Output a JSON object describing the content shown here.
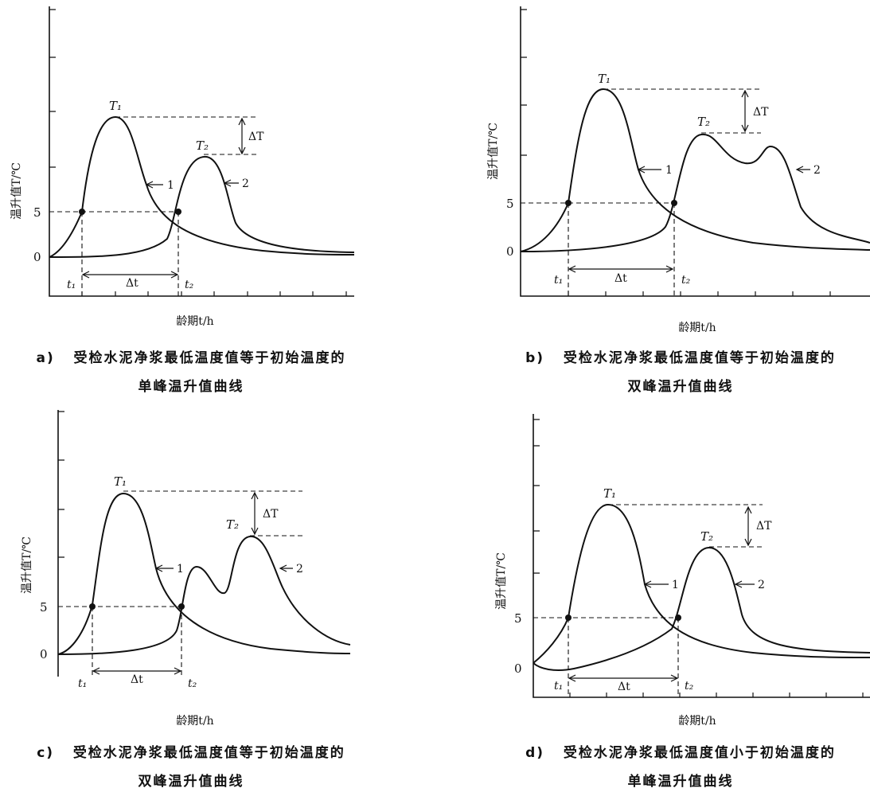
{
  "diagrams": [
    {
      "id": "a",
      "tag": "a)",
      "caption_line1": "受检水泥净浆最低温度值等于初始温度的",
      "caption_line2": "单峰温升值曲线",
      "y_label": "温升值T/℃",
      "x_label": "龄期t/h",
      "y_ticks": [
        "5",
        "0"
      ],
      "peak1": "T₁",
      "peak2": "T₂",
      "t1": "t₁",
      "t2": "t₂",
      "delta_t": "Δt",
      "delta_T": "ΔT",
      "curve1_label": "1",
      "curve2_label": "2"
    },
    {
      "id": "b",
      "tag": "b)",
      "caption_line1": "受检水泥净浆最低温度值等于初始温度的",
      "caption_line2": "双峰温升值曲线",
      "y_label": "温升值T/℃",
      "x_label": "龄期t/h",
      "y_ticks": [
        "5",
        "0"
      ],
      "peak1": "T₁",
      "peak2": "T₂",
      "t1": "t₁",
      "t2": "t₂",
      "delta_t": "Δt",
      "delta_T": "ΔT",
      "curve1_label": "1",
      "curve2_label": "2"
    },
    {
      "id": "c",
      "tag": "c)",
      "caption_line1": "受检水泥净浆最低温度值等于初始温度的",
      "caption_line2": "双峰温升值曲线",
      "y_label": "温升值T/℃",
      "x_label": "龄期t/h",
      "y_ticks": [
        "5",
        "0"
      ],
      "peak1": "T₁",
      "peak2": "T₂",
      "t1": "t₁",
      "t2": "t₂",
      "delta_t": "Δt",
      "delta_T": "ΔT",
      "curve1_label": "1",
      "curve2_label": "2"
    },
    {
      "id": "d",
      "tag": "d)",
      "caption_line1": "受检水泥净浆最低温度值小于初始温度的",
      "caption_line2": "单峰温升值曲线",
      "y_label": "温升值T/℃",
      "x_label": "龄期t/h",
      "y_ticks": [
        "5",
        "0"
      ],
      "peak1": "T₁",
      "peak2": "T₂",
      "t1": "t₁",
      "t2": "t₂",
      "delta_t": "Δt",
      "delta_T": "ΔT",
      "curve1_label": "1",
      "curve2_label": "2"
    }
  ]
}
